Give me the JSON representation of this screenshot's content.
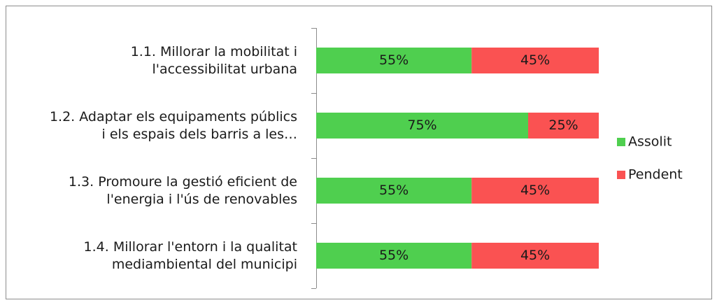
{
  "chart_data": {
    "type": "stacked-bar-horizontal",
    "categories": [
      [
        "1.1. Millorar la mobilitat i",
        "l'accessibilitat urbana"
      ],
      [
        "1.2. Adaptar els equipaments públics",
        "i els espais dels barris a les…"
      ],
      [
        "1.3. Promoure la gestió eficient de",
        "l'energia i l'ús de renovables"
      ],
      [
        "1.4. Millorar l'entorn i la qualitat",
        "mediambiental del municipi"
      ]
    ],
    "series": [
      {
        "name": "Assolit",
        "color": "#4fcf4f",
        "values": [
          55,
          75,
          55,
          55
        ],
        "value_labels": [
          "55%",
          "75%",
          "55%",
          "55%"
        ]
      },
      {
        "name": "Pendent",
        "color": "#fa5252",
        "values": [
          45,
          25,
          45,
          45
        ],
        "value_labels": [
          "45%",
          "25%",
          "45%",
          "45%"
        ]
      }
    ],
    "xlim": [
      0,
      100
    ],
    "legend": "right"
  }
}
